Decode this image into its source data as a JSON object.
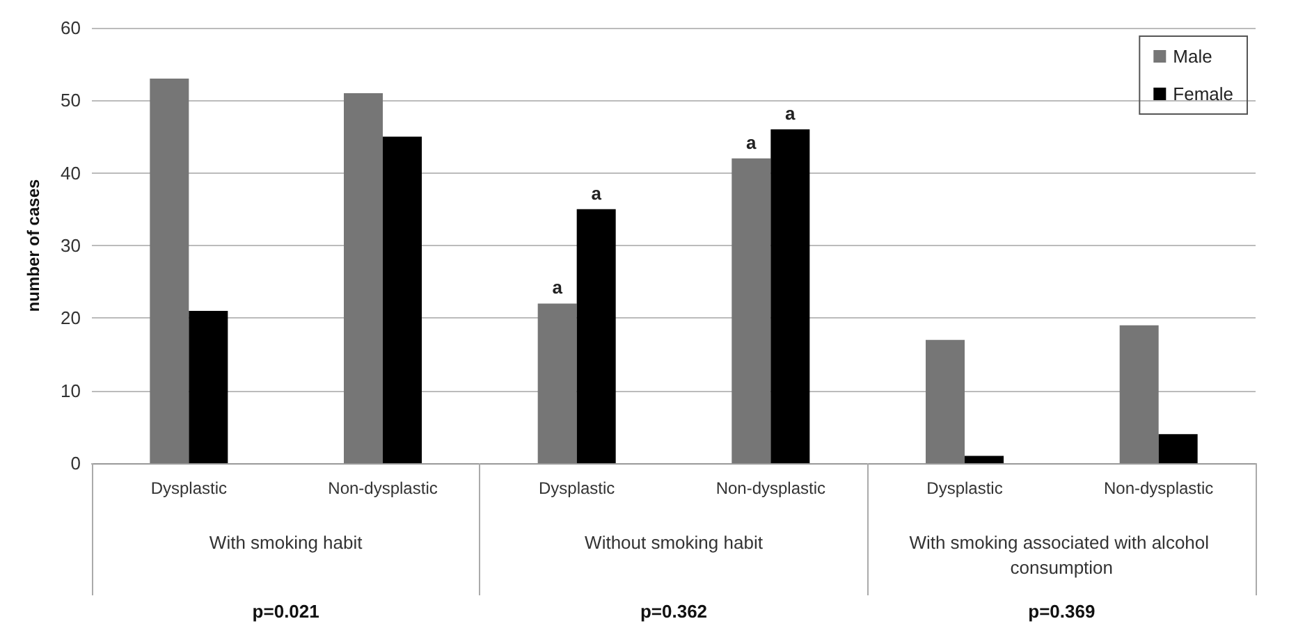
{
  "chart_data": {
    "type": "bar",
    "ylabel": "number of cases",
    "categories": [
      "Dysplastic",
      "Non-dysplastic",
      "Dysplastic",
      "Non-dysplastic",
      "Dysplastic",
      "Non-dysplastic"
    ],
    "series": [
      {
        "name": "Male",
        "color": "#767676",
        "values": [
          53,
          51,
          22,
          42,
          17,
          19
        ],
        "value_labels": [
          null,
          null,
          "a",
          "a",
          null,
          null
        ]
      },
      {
        "name": "Female",
        "color": "#000000",
        "values": [
          21,
          45,
          35,
          46,
          1,
          4
        ],
        "value_labels": [
          null,
          null,
          "a",
          "a",
          null,
          null
        ]
      }
    ],
    "annotations": [
      "With smoking habit",
      "Without smoking habit",
      "With smoking associated with alcohol consumption",
      "p=0.021",
      "p=0.362",
      "p=0.369"
    ],
    "ylim": [
      0,
      60
    ],
    "yticks": [
      0,
      10,
      20,
      30,
      40,
      50,
      60
    ],
    "grid": "y",
    "legend": "top right"
  }
}
